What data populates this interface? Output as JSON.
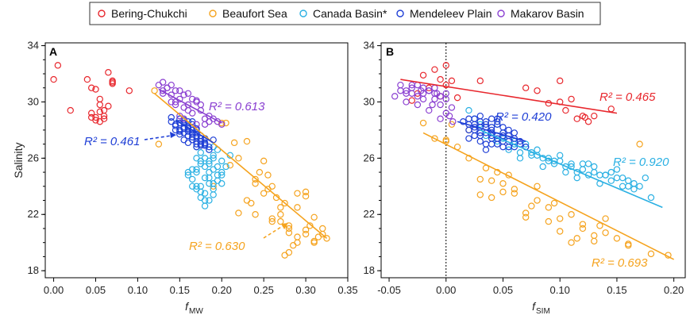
{
  "legend": [
    {
      "name": "Bering-Chukchi",
      "color": "#e8272d"
    },
    {
      "name": "Beaufort Sea",
      "color": "#f5a31e"
    },
    {
      "name": "Canada Basin*",
      "color": "#2ab0e3"
    },
    {
      "name": "Mendeleev Plain",
      "color": "#1f3fd6"
    },
    {
      "name": "Makarov Basin",
      "color": "#8a3fd1"
    }
  ],
  "chart_data": [
    {
      "type": "scatter",
      "panel": "A",
      "xlabel_main": "f",
      "xlabel_sub": "MW",
      "ylabel": "Salinity",
      "xlim": [
        -0.01,
        0.35
      ],
      "ylim": [
        17.5,
        34.2
      ],
      "xticks": [
        "0.00",
        "0.05",
        "0.10",
        "0.15",
        "0.20",
        "0.25",
        "0.30",
        "0.35"
      ],
      "yticks": [
        "18",
        "22",
        "26",
        "30",
        "34"
      ],
      "series": [
        {
          "name": "Bering-Chukchi",
          "x": [
            0.0,
            0.005,
            0.02,
            0.04,
            0.045,
            0.05,
            0.055,
            0.06,
            0.065,
            0.07,
            0.07,
            0.09,
            0.05,
            0.055,
            0.045,
            0.06,
            0.05,
            0.055,
            0.06,
            0.065,
            0.055,
            0.045,
            0.07
          ],
          "y": [
            31.6,
            32.6,
            29.4,
            31.6,
            28.9,
            30.9,
            29.3,
            28.8,
            32.1,
            31.3,
            31.5,
            30.8,
            28.7,
            29.8,
            29.2,
            29.0,
            28.9,
            28.6,
            29.4,
            29.7,
            30.2,
            31.0,
            31.4
          ]
        },
        {
          "name": "Beaufort Sea",
          "x": [
            0.12,
            0.125,
            0.19,
            0.205,
            0.22,
            0.23,
            0.24,
            0.25,
            0.26,
            0.27,
            0.275,
            0.28,
            0.29,
            0.3,
            0.305,
            0.31,
            0.315,
            0.32,
            0.325,
            0.23,
            0.24,
            0.25,
            0.26,
            0.27,
            0.28,
            0.29,
            0.3,
            0.31,
            0.32,
            0.275,
            0.28,
            0.285,
            0.26,
            0.255,
            0.24,
            0.235,
            0.22,
            0.21,
            0.2,
            0.215,
            0.27,
            0.28,
            0.29,
            0.3,
            0.31,
            0.265,
            0.255,
            0.245,
            0.29,
            0.3
          ],
          "y": [
            30.8,
            27.0,
            24.0,
            28.5,
            26.0,
            27.2,
            24.5,
            25.8,
            24.0,
            22.5,
            19.1,
            19.3,
            20.0,
            20.6,
            21.2,
            20.0,
            20.4,
            20.6,
            20.3,
            23.0,
            22.0,
            23.5,
            21.5,
            22.0,
            21.0,
            23.5,
            23.3,
            21.8,
            21.0,
            22.8,
            20.7,
            19.8,
            21.7,
            23.8,
            24.2,
            22.8,
            22.1,
            25.5,
            28.5,
            27.1,
            21.5,
            21.2,
            20.4,
            20.9,
            20.1,
            23.2,
            24.8,
            25.0,
            22.5,
            23.6
          ]
        },
        {
          "name": "Canada Basin*",
          "x": [
            0.16,
            0.165,
            0.17,
            0.175,
            0.18,
            0.185,
            0.19,
            0.195,
            0.2,
            0.17,
            0.175,
            0.18,
            0.185,
            0.19,
            0.195,
            0.16,
            0.165,
            0.17,
            0.175,
            0.18,
            0.185,
            0.19,
            0.2,
            0.21,
            0.175,
            0.18,
            0.185,
            0.19,
            0.195,
            0.17,
            0.175,
            0.18,
            0.185,
            0.19,
            0.165,
            0.17,
            0.2,
            0.205,
            0.18,
            0.185,
            0.19,
            0.175,
            0.18,
            0.185,
            0.19,
            0.195,
            0.2,
            0.17,
            0.175,
            0.18
          ],
          "y": [
            25.0,
            24.5,
            25.2,
            24.0,
            23.5,
            25.8,
            26.2,
            24.4,
            25.0,
            23.8,
            23.2,
            24.6,
            25.6,
            26.8,
            25.4,
            24.8,
            24.0,
            25.0,
            25.6,
            26.0,
            24.2,
            23.8,
            25.8,
            26.2,
            26.4,
            27.0,
            26.6,
            25.2,
            24.8,
            24.0,
            23.6,
            22.6,
            23.0,
            24.2,
            25.2,
            26.0,
            24.8,
            25.4,
            27.4,
            25.0,
            26.0,
            25.8,
            25.4,
            24.6,
            23.4,
            26.6,
            24.2,
            26.8,
            27.2,
            23.0
          ]
        },
        {
          "name": "Mendeleev Plain",
          "x": [
            0.14,
            0.145,
            0.15,
            0.155,
            0.16,
            0.165,
            0.17,
            0.175,
            0.18,
            0.185,
            0.15,
            0.155,
            0.16,
            0.165,
            0.17,
            0.175,
            0.18,
            0.15,
            0.155,
            0.16,
            0.165,
            0.17,
            0.175,
            0.145,
            0.15,
            0.155,
            0.16,
            0.165,
            0.17,
            0.175,
            0.18,
            0.185,
            0.19,
            0.16,
            0.165,
            0.17,
            0.175,
            0.155,
            0.16,
            0.165,
            0.17,
            0.14,
            0.145,
            0.15,
            0.155,
            0.16,
            0.165,
            0.17,
            0.175,
            0.18
          ],
          "y": [
            28.6,
            28.4,
            28.0,
            28.5,
            28.1,
            27.7,
            27.8,
            27.2,
            27.0,
            26.8,
            28.8,
            28.2,
            27.6,
            28.4,
            27.2,
            27.6,
            27.4,
            27.9,
            27.8,
            28.6,
            28.0,
            27.0,
            27.0,
            28.3,
            28.5,
            28.1,
            27.9,
            27.3,
            27.5,
            26.9,
            27.1,
            26.6,
            27.3,
            28.2,
            27.8,
            26.8,
            27.4,
            28.7,
            28.3,
            27.5,
            28.1,
            28.9,
            28.0,
            27.7,
            27.3,
            27.1,
            28.6,
            28.0,
            27.2,
            26.9
          ]
        },
        {
          "name": "Makarov Basin",
          "x": [
            0.125,
            0.13,
            0.135,
            0.14,
            0.145,
            0.15,
            0.155,
            0.16,
            0.165,
            0.17,
            0.175,
            0.18,
            0.185,
            0.13,
            0.135,
            0.14,
            0.145,
            0.15,
            0.155,
            0.16,
            0.165,
            0.17,
            0.14,
            0.15,
            0.16,
            0.17,
            0.175,
            0.18,
            0.185,
            0.19,
            0.195,
            0.2,
            0.13,
            0.145,
            0.155
          ],
          "y": [
            31.2,
            30.8,
            31.0,
            30.5,
            30.8,
            30.2,
            30.5,
            29.8,
            30.2,
            30.0,
            29.4,
            28.8,
            28.6,
            31.4,
            31.0,
            31.2,
            30.0,
            30.8,
            29.6,
            30.6,
            29.2,
            28.4,
            30.0,
            29.0,
            29.4,
            30.1,
            29.8,
            28.4,
            29.0,
            28.8,
            28.6,
            28.4,
            30.6,
            29.8,
            28.8
          ]
        }
      ],
      "fits": [
        {
          "series": "Beaufort Sea",
          "x": [
            0.12,
            0.325
          ],
          "y": [
            30.6,
            20.3
          ],
          "r2_label": "R² = 0.630"
        },
        {
          "series": "Mendeleev Plain",
          "x": [
            0.145,
            0.19
          ],
          "y": [
            28.7,
            27.1
          ],
          "r2_label": "R² = 0.461"
        },
        {
          "series": "Makarov Basin",
          "x": [
            0.125,
            0.2
          ],
          "y": [
            30.9,
            28.5
          ],
          "r2_label": "R² = 0.613"
        }
      ]
    },
    {
      "type": "scatter",
      "panel": "B",
      "xlabel_main": "f",
      "xlabel_sub": "SIM",
      "ylabel": "",
      "xlim": [
        -0.057,
        0.21
      ],
      "ylim": [
        17.5,
        34.2
      ],
      "xticks": [
        "-0.05",
        "0.00",
        "0.05",
        "0.10",
        "0.15",
        "0.20"
      ],
      "yticks": [
        "18",
        "22",
        "26",
        "30",
        "34"
      ],
      "zero_line_x": 0.0,
      "series": [
        {
          "name": "Bering-Chukchi",
          "x": [
            -0.03,
            -0.02,
            -0.01,
            0.0,
            0.005,
            -0.005,
            0.01,
            0.03,
            0.07,
            0.1,
            0.105,
            0.115,
            0.12,
            0.122,
            0.125,
            0.145,
            -0.025,
            -0.015,
            -0.005,
            0.0,
            0.08,
            0.09,
            0.1,
            0.11,
            0.13
          ],
          "y": [
            30.1,
            31.9,
            32.3,
            32.6,
            31.5,
            30.4,
            30.3,
            31.5,
            31.0,
            30.0,
            29.4,
            28.8,
            29.0,
            28.9,
            28.6,
            29.5,
            30.6,
            31.0,
            31.6,
            31.2,
            30.8,
            29.9,
            31.5,
            30.2,
            29.0
          ]
        },
        {
          "name": "Beaufort Sea",
          "x": [
            -0.02,
            -0.01,
            0.0,
            0.005,
            0.01,
            0.02,
            0.03,
            0.04,
            0.045,
            0.05,
            0.06,
            0.07,
            0.08,
            0.09,
            0.1,
            0.11,
            0.12,
            0.13,
            0.15,
            0.16,
            0.18,
            0.195,
            0.0,
            0.03,
            0.05,
            0.07,
            0.09,
            0.11,
            0.13,
            0.14,
            0.17,
            0.02,
            0.04,
            0.06,
            0.08,
            0.1,
            0.12,
            0.14,
            0.16,
            0.035,
            0.055,
            0.075,
            0.095,
            0.115,
            0.135
          ],
          "y": [
            28.5,
            27.4,
            27.2,
            28.4,
            26.8,
            28.0,
            24.5,
            23.2,
            25.0,
            23.6,
            23.5,
            22.1,
            24.0,
            21.5,
            20.8,
            20.0,
            21.0,
            20.5,
            20.3,
            19.8,
            19.2,
            19.1,
            27.3,
            23.4,
            24.2,
            21.8,
            22.5,
            22.0,
            20.1,
            21.7,
            27.0,
            26.0,
            24.4,
            23.8,
            23.0,
            21.7,
            21.3,
            20.7,
            19.9,
            25.3,
            24.8,
            22.6,
            22.8,
            20.3,
            21.2
          ]
        },
        {
          "name": "Canada Basin*",
          "x": [
            0.03,
            0.04,
            0.05,
            0.06,
            0.07,
            0.08,
            0.09,
            0.1,
            0.11,
            0.12,
            0.13,
            0.14,
            0.15,
            0.16,
            0.17,
            0.18,
            0.035,
            0.045,
            0.055,
            0.065,
            0.075,
            0.085,
            0.095,
            0.105,
            0.115,
            0.125,
            0.135,
            0.145,
            0.155,
            0.165,
            0.175,
            0.05,
            0.06,
            0.07,
            0.08,
            0.09,
            0.1,
            0.11,
            0.12,
            0.13,
            0.14,
            0.15,
            0.16,
            0.045,
            0.055,
            0.065,
            0.075,
            0.085,
            0.095,
            0.105,
            0.115,
            0.125,
            0.135,
            0.145,
            0.155,
            0.165,
            0.02,
            0.025,
            0.03
          ],
          "y": [
            28.2,
            27.8,
            27.4,
            27.0,
            26.8,
            26.2,
            26.0,
            25.8,
            25.4,
            25.2,
            25.0,
            24.8,
            24.6,
            24.4,
            24.0,
            23.2,
            27.6,
            27.2,
            26.8,
            26.4,
            26.4,
            26.0,
            25.6,
            25.4,
            25.0,
            24.8,
            24.8,
            24.4,
            24.0,
            23.8,
            24.6,
            27.8,
            27.2,
            27.0,
            26.6,
            25.8,
            26.2,
            25.6,
            25.6,
            25.4,
            24.8,
            25.2,
            24.0,
            28.4,
            26.6,
            26.0,
            26.2,
            25.4,
            25.8,
            25.0,
            24.6,
            25.6,
            24.2,
            25.0,
            24.6,
            24.2,
            29.4,
            28.8,
            28.4
          ]
        },
        {
          "name": "Mendeleev Plain",
          "x": [
            0.02,
            0.025,
            0.03,
            0.035,
            0.04,
            0.045,
            0.05,
            0.055,
            0.06,
            0.065,
            0.02,
            0.025,
            0.03,
            0.035,
            0.04,
            0.045,
            0.05,
            0.055,
            0.06,
            0.015,
            0.02,
            0.025,
            0.03,
            0.035,
            0.04,
            0.045,
            0.05,
            0.055,
            0.025,
            0.03,
            0.035,
            0.04,
            0.045,
            0.05,
            0.03,
            0.035,
            0.04,
            0.045,
            0.04,
            0.05,
            0.055,
            0.06,
            0.065,
            0.07,
            0.03,
            0.035,
            0.04,
            0.045,
            0.02,
            0.025
          ],
          "y": [
            28.4,
            28.8,
            28.2,
            28.6,
            28.0,
            28.4,
            27.8,
            28.0,
            27.4,
            27.2,
            28.0,
            27.6,
            27.8,
            28.2,
            28.8,
            27.6,
            28.2,
            27.2,
            27.8,
            28.6,
            27.4,
            28.4,
            27.2,
            27.8,
            27.4,
            27.0,
            27.6,
            26.8,
            28.0,
            28.6,
            27.0,
            27.8,
            28.6,
            27.2,
            29.0,
            28.4,
            28.2,
            27.4,
            27.6,
            26.8,
            27.6,
            26.8,
            27.0,
            26.8,
            27.6,
            26.6,
            27.0,
            28.8,
            28.8,
            28.2
          ]
        },
        {
          "name": "Makarov Basin",
          "x": [
            -0.045,
            -0.04,
            -0.035,
            -0.03,
            -0.025,
            -0.02,
            -0.015,
            -0.01,
            -0.005,
            0.0,
            0.005,
            -0.04,
            -0.035,
            -0.03,
            -0.025,
            -0.02,
            -0.015,
            -0.01,
            -0.005,
            0.0,
            -0.03,
            -0.02,
            -0.01,
            0.0,
            -0.005,
            -0.015,
            -0.025,
            -0.035,
            0.003,
            -0.008,
            0.006,
            -0.012,
            -0.022
          ],
          "y": [
            30.4,
            30.8,
            30.6,
            31.0,
            31.2,
            30.6,
            30.8,
            31.0,
            30.4,
            30.2,
            29.6,
            31.2,
            30.0,
            30.6,
            30.4,
            30.2,
            30.8,
            30.6,
            29.8,
            29.2,
            31.2,
            31.0,
            30.2,
            30.6,
            28.8,
            29.4,
            29.8,
            30.8,
            29.0,
            30.6,
            28.6,
            29.8,
            30.8
          ]
        }
      ],
      "fits": [
        {
          "series": "Bering-Chukchi",
          "x": [
            -0.04,
            0.15
          ],
          "y": [
            31.6,
            29.2
          ],
          "r2_label": "R² = 0.465"
        },
        {
          "series": "Beaufort Sea",
          "x": [
            -0.02,
            0.2
          ],
          "y": [
            27.8,
            18.8
          ],
          "r2_label": "R² = 0.693"
        },
        {
          "series": "Canada Basin*",
          "x": [
            0.03,
            0.19
          ],
          "y": [
            28.0,
            22.5
          ],
          "r2_label": "R² = 0.920"
        },
        {
          "series": "Mendeleev Plain",
          "x": [
            0.01,
            0.07
          ],
          "y": [
            28.6,
            27.2
          ],
          "r2_label": "R² = 0.420"
        }
      ]
    }
  ]
}
